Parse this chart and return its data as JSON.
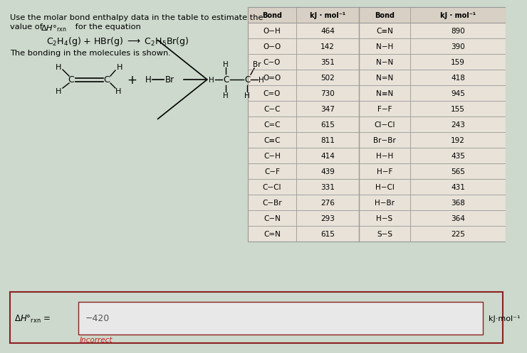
{
  "bg_color": "#ccd9cc",
  "left_bonds": [
    "O−H",
    "O−O",
    "C−O",
    "O=O",
    "C=O",
    "C−C",
    "C=C",
    "C≡C",
    "C−H",
    "C−F",
    "C−Cl",
    "C−Br",
    "C−N",
    "C=N"
  ],
  "left_values": [
    "464",
    "142",
    "351",
    "502",
    "730",
    "347",
    "615",
    "811",
    "414",
    "439",
    "331",
    "276",
    "293",
    "615"
  ],
  "right_bonds": [
    "C≡N",
    "N−H",
    "N−N",
    "N=N",
    "N≡N",
    "F−F",
    "Cl−Cl",
    "Br−Br",
    "H−H",
    "H−F",
    "H−Cl",
    "H−Br",
    "H−S",
    "S−S"
  ],
  "right_values": [
    "890",
    "390",
    "159",
    "418",
    "945",
    "155",
    "243",
    "192",
    "435",
    "565",
    "431",
    "368",
    "364",
    "225"
  ],
  "col_header1": "Bond",
  "col_header2": "kJ · mol⁻¹",
  "col_header3": "Bond",
  "col_header4": "kJ · mol⁻¹",
  "answer_value": "−420",
  "unit_text": "kJ·mol⁻¹",
  "incorrect_text": "Incorrect",
  "input_border_color": "#8b2222",
  "incorrect_color": "#cc2222",
  "table_face": "#e8e2d8",
  "table_header_face": "#d8d0c4",
  "table_edge": "#999999"
}
